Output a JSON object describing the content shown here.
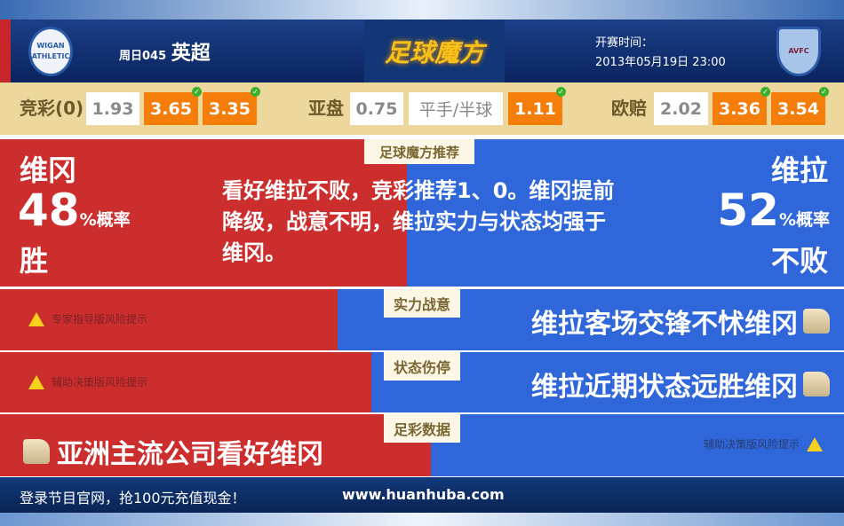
{
  "header": {
    "match_no": "周日045",
    "league": "英超",
    "logo": "足球魔方",
    "kickoff_label": "开赛时间：",
    "kickoff_time": "2013年05月19日 23:00",
    "home_badge": "WIGAN ATHLETIC",
    "away_badge": "AVFC"
  },
  "odds": {
    "jingcai": {
      "label": "竞彩(0)",
      "values": [
        "1.93",
        "3.65",
        "3.35"
      ],
      "highlighted": [
        false,
        true,
        true
      ]
    },
    "yapan": {
      "label": "亚盘",
      "values": [
        "0.75",
        "平手/半球",
        "1.11"
      ],
      "highlighted": [
        false,
        false,
        true
      ]
    },
    "ouzhi": {
      "label": "欧赔",
      "values": [
        "2.02",
        "3.36",
        "3.54"
      ],
      "highlighted": [
        false,
        true,
        true
      ]
    }
  },
  "recommend": {
    "tag": "足球魔方推荐",
    "home": {
      "name": "维冈",
      "pct": "48",
      "pct_suffix": "%概率",
      "outcome": "胜"
    },
    "away": {
      "name": "维拉",
      "pct": "52",
      "pct_suffix": "%概率",
      "outcome": "不败"
    },
    "text": "看好维拉不败，竞彩推荐1、0。维冈提前降级，战意不明，维拉实力与状态均强于维冈。"
  },
  "rows": [
    {
      "tag": "实力战意",
      "left": "专家指导版风险提示",
      "right": "维拉客场交锋不怵维冈",
      "home_share": 0.4
    },
    {
      "tag": "状态伤停",
      "left": "辅助决策版风险提示",
      "right": "维拉近期状态远胜维冈",
      "home_share": 0.44
    },
    {
      "tag": "足彩数据",
      "left": "亚洲主流公司看好维冈",
      "right": "辅助决策版风险提示",
      "home_share": 0.51
    }
  ],
  "footer": {
    "promo": "登录节目官网，抢100元充值现金！",
    "url": "www.huanhuba.com"
  },
  "colors": {
    "home": "#cc2d2d",
    "away": "#2f67db",
    "odds_highlight": "#f57d0a"
  }
}
